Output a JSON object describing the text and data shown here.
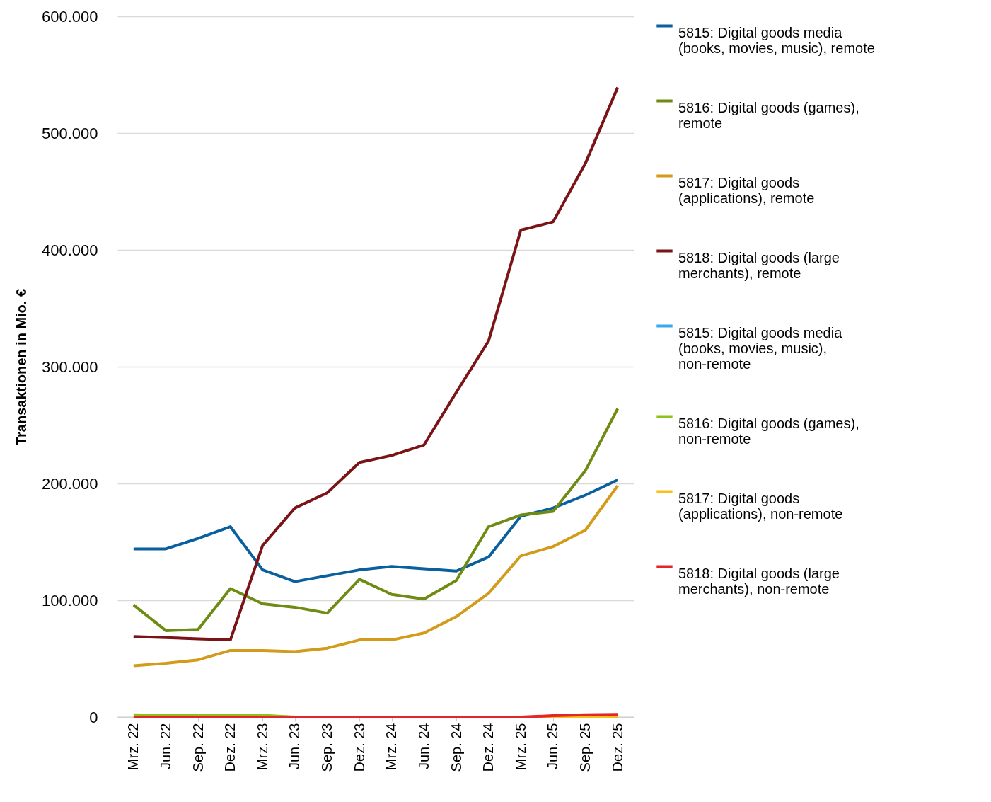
{
  "chart_data": {
    "type": "line",
    "ylabel": "Transaktionen in Mio. €",
    "categories": [
      "Mrz. 22",
      "Jun. 22",
      "Sep. 22",
      "Dez. 22",
      "Mrz. 23",
      "Jun. 23",
      "Sep. 23",
      "Dez. 23",
      "Mrz. 24",
      "Jun. 24",
      "Sep. 24",
      "Dez. 24",
      "Mrz. 25",
      "Jun. 25",
      "Sep. 25",
      "Dez. 25"
    ],
    "ylim": [
      0,
      600000
    ],
    "yticks": [
      {
        "value": 0,
        "label": "0"
      },
      {
        "value": 100000,
        "label": "100.000"
      },
      {
        "value": 200000,
        "label": "200.000"
      },
      {
        "value": 300000,
        "label": "300.000"
      },
      {
        "value": 400000,
        "label": "400.000"
      },
      {
        "value": 500000,
        "label": "500.000"
      },
      {
        "value": 600000,
        "label": "600.000"
      }
    ],
    "grid": "y",
    "legend": "right",
    "marker": "none",
    "line_style": "solid",
    "series": [
      {
        "name": "5815: Digital goods media (books, movies, music), remote",
        "color": "#0a5f9e",
        "values": [
          144000,
          144000,
          153000,
          163000,
          126000,
          116000,
          121000,
          126000,
          129000,
          127000,
          125000,
          137000,
          172000,
          179000,
          190000,
          203000
        ]
      },
      {
        "name": "5816: Digital goods (games), remote",
        "color": "#6e8b12",
        "values": [
          96000,
          74000,
          75000,
          110000,
          97000,
          94000,
          89000,
          118000,
          105000,
          101000,
          117000,
          163000,
          173000,
          176000,
          211000,
          264000
        ]
      },
      {
        "name": "5817: Digital goods (applications), remote",
        "color": "#d39b1a",
        "values": [
          44000,
          46000,
          49000,
          57000,
          57000,
          56000,
          59000,
          66000,
          66000,
          72000,
          86000,
          106000,
          138000,
          146000,
          160000,
          198000
        ]
      },
      {
        "name": "5818: Digital goods (large merchants), remote",
        "color": "#7b1416",
        "values": [
          69000,
          68000,
          67000,
          66000,
          147000,
          179000,
          192000,
          218000,
          224000,
          233000,
          278000,
          322000,
          417000,
          424000,
          474000,
          539000
        ]
      },
      {
        "name": "5815: Digital goods media (books, movies, music), non-remote",
        "color": "#36a9ef",
        "values": [
          null,
          null,
          null,
          null,
          null,
          null,
          null,
          null,
          null,
          null,
          null,
          null,
          null,
          null,
          null,
          null
        ]
      },
      {
        "name": "5816: Digital goods (games), non-remote",
        "color": "#8ec21a",
        "values": [
          2000,
          1500,
          1500,
          1500,
          1500,
          0,
          null,
          null,
          null,
          null,
          null,
          null,
          null,
          null,
          null,
          null
        ]
      },
      {
        "name": "5817: Digital goods (applications), non-remote",
        "color": "#f8c01a",
        "values": [
          null,
          null,
          null,
          null,
          null,
          null,
          null,
          null,
          null,
          null,
          null,
          null,
          0,
          0,
          0,
          0
        ]
      },
      {
        "name": "5818: Digital goods (large merchants), non-remote",
        "color": "#e3262c",
        "values": [
          0,
          0,
          0,
          0,
          0,
          0,
          0,
          0,
          0,
          0,
          0,
          0,
          0,
          1200,
          2000,
          2200
        ]
      }
    ]
  }
}
